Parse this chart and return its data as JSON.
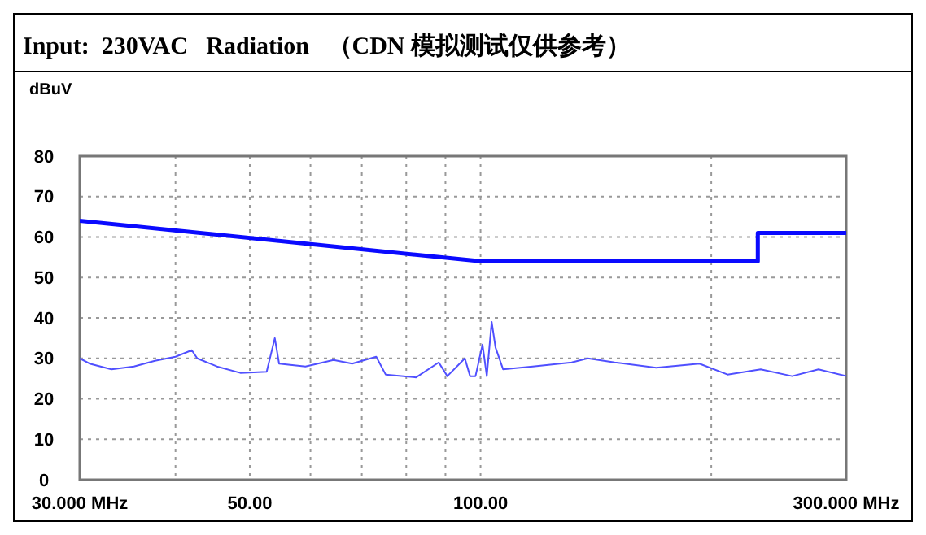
{
  "chart_data": {
    "type": "line",
    "title": "Input:  230VAC   Radiation   （CDN 模拟测试仅供参考）",
    "ylabel": "dBuV",
    "log": "x",
    "grid": true,
    "xlim": [
      30,
      300
    ],
    "ylim": [
      0,
      80
    ],
    "xticks": [
      {
        "value": 30,
        "label": "30.000 MHz"
      },
      {
        "value": 40,
        "label": null
      },
      {
        "value": 50,
        "label": "50.00"
      },
      {
        "value": 60,
        "label": null
      },
      {
        "value": 70,
        "label": null
      },
      {
        "value": 80,
        "label": null
      },
      {
        "value": 90,
        "label": null
      },
      {
        "value": 100,
        "label": "100.00"
      },
      {
        "value": 200,
        "label": null
      },
      {
        "value": 300,
        "label": "300.000 MHz"
      }
    ],
    "yticks": [
      0,
      10,
      20,
      30,
      40,
      50,
      60,
      70,
      80
    ],
    "series": [
      {
        "color": "#0a0aff",
        "x": [
          30,
          100,
          230,
          230,
          300
        ],
        "values": [
          64,
          54,
          54,
          61,
          61
        ]
      },
      {
        "color": "#5050ff",
        "x": [
          30,
          30.9,
          33,
          35.3,
          37.6,
          40,
          42,
          42.7,
          45.3,
          48.6,
          52.6,
          53.9,
          54.6,
          59.1,
          64.3,
          68,
          73.1,
          75.2,
          82.4,
          88.2,
          90.5,
          95.4,
          96.9,
          98.5,
          100.6,
          101.9,
          103.4,
          104.6,
          107,
          117,
          131.5,
          138,
          149.6,
          169.5,
          193,
          210,
          232,
          255,
          276,
          300
        ],
        "values": [
          30,
          28.7,
          27.3,
          28,
          29.4,
          30.4,
          32,
          30,
          28,
          26.4,
          26.7,
          35,
          28.7,
          28,
          29.6,
          28.7,
          30.4,
          26,
          25.3,
          29,
          25.6,
          30,
          25.6,
          25.6,
          33.4,
          25.6,
          39,
          32.7,
          27.3,
          28,
          29,
          30,
          29,
          27.7,
          28.7,
          26,
          27.3,
          25.6,
          27.3,
          25.6
        ]
      }
    ]
  }
}
